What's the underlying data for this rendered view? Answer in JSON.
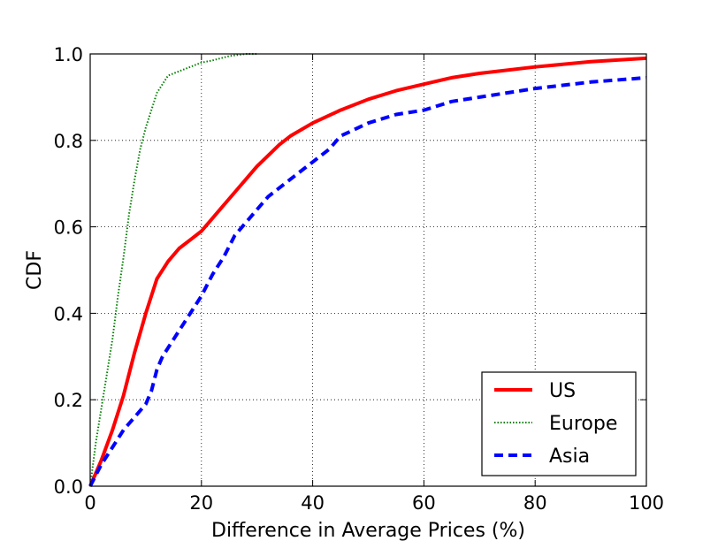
{
  "chart_data": {
    "type": "line",
    "xlabel": "Difference in Average Prices (%)",
    "ylabel": "CDF",
    "xlim": [
      0,
      100
    ],
    "ylim": [
      0.0,
      1.0
    ],
    "xticks": [
      "0",
      "20",
      "40",
      "60",
      "80",
      "100"
    ],
    "yticks": [
      "0.0",
      "0.2",
      "0.4",
      "0.6",
      "0.8",
      "1.0"
    ],
    "grid": true,
    "legend_position": "lower-right",
    "series": [
      {
        "name": "US",
        "color": "#ff0000",
        "style": "solid",
        "x": [
          0,
          2,
          4,
          6,
          8,
          10,
          11,
          12,
          14,
          16,
          18,
          20,
          22,
          24,
          26,
          28,
          30,
          32,
          34,
          36,
          40,
          45,
          50,
          55,
          60,
          65,
          70,
          80,
          90,
          100
        ],
        "y": [
          0.0,
          0.06,
          0.13,
          0.21,
          0.31,
          0.4,
          0.44,
          0.48,
          0.52,
          0.55,
          0.57,
          0.59,
          0.62,
          0.65,
          0.68,
          0.71,
          0.74,
          0.765,
          0.79,
          0.81,
          0.84,
          0.87,
          0.895,
          0.915,
          0.93,
          0.945,
          0.955,
          0.97,
          0.982,
          0.99
        ]
      },
      {
        "name": "Europe",
        "color": "#007f00",
        "style": "dotted",
        "x": [
          0,
          1,
          2,
          3,
          4,
          5,
          6,
          7,
          8,
          9,
          10,
          11,
          12,
          13,
          14,
          16,
          18,
          20,
          22,
          25,
          28,
          30
        ],
        "y": [
          0.0,
          0.1,
          0.18,
          0.26,
          0.34,
          0.44,
          0.53,
          0.63,
          0.71,
          0.78,
          0.83,
          0.87,
          0.91,
          0.93,
          0.95,
          0.96,
          0.97,
          0.98,
          0.985,
          0.995,
          1.0,
          1.0
        ]
      },
      {
        "name": "Asia",
        "color": "#0000ff",
        "style": "dashed",
        "x": [
          0,
          2,
          4,
          6,
          8,
          10,
          11,
          12,
          13,
          14,
          16,
          18,
          20,
          22,
          24,
          26,
          28,
          30,
          32,
          34,
          36,
          38,
          40,
          43,
          45,
          50,
          55,
          60,
          65,
          70,
          80,
          90,
          100
        ],
        "y": [
          0.0,
          0.05,
          0.09,
          0.13,
          0.16,
          0.19,
          0.22,
          0.27,
          0.3,
          0.32,
          0.36,
          0.4,
          0.44,
          0.49,
          0.53,
          0.58,
          0.61,
          0.64,
          0.67,
          0.69,
          0.71,
          0.73,
          0.75,
          0.78,
          0.81,
          0.84,
          0.86,
          0.87,
          0.89,
          0.9,
          0.92,
          0.935,
          0.945
        ]
      }
    ]
  }
}
